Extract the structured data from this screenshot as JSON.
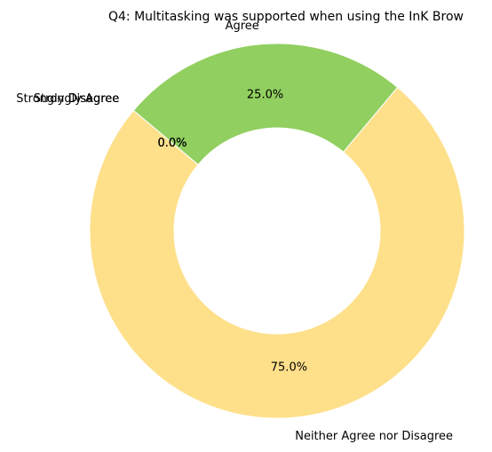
{
  "chart_data": {
    "type": "pie",
    "variant": "donut",
    "title": "Q4: Multitasking was supported when using the InK Brow",
    "categories": [
      "Strongly Disagree",
      "Disagree",
      "Neither Agree nor Disagree",
      "Agree",
      "Strongly Agree"
    ],
    "values": [
      0.0,
      0.0,
      75.0,
      25.0,
      0.0
    ],
    "percent_labels": [
      "0.0%",
      "0.0%",
      "75.0%",
      "25.0%",
      "0.0%"
    ],
    "colors": [
      "#d7191c",
      "#fdae61",
      "#fee08b",
      "#91cf60",
      "#1a9641"
    ],
    "legend": false
  }
}
